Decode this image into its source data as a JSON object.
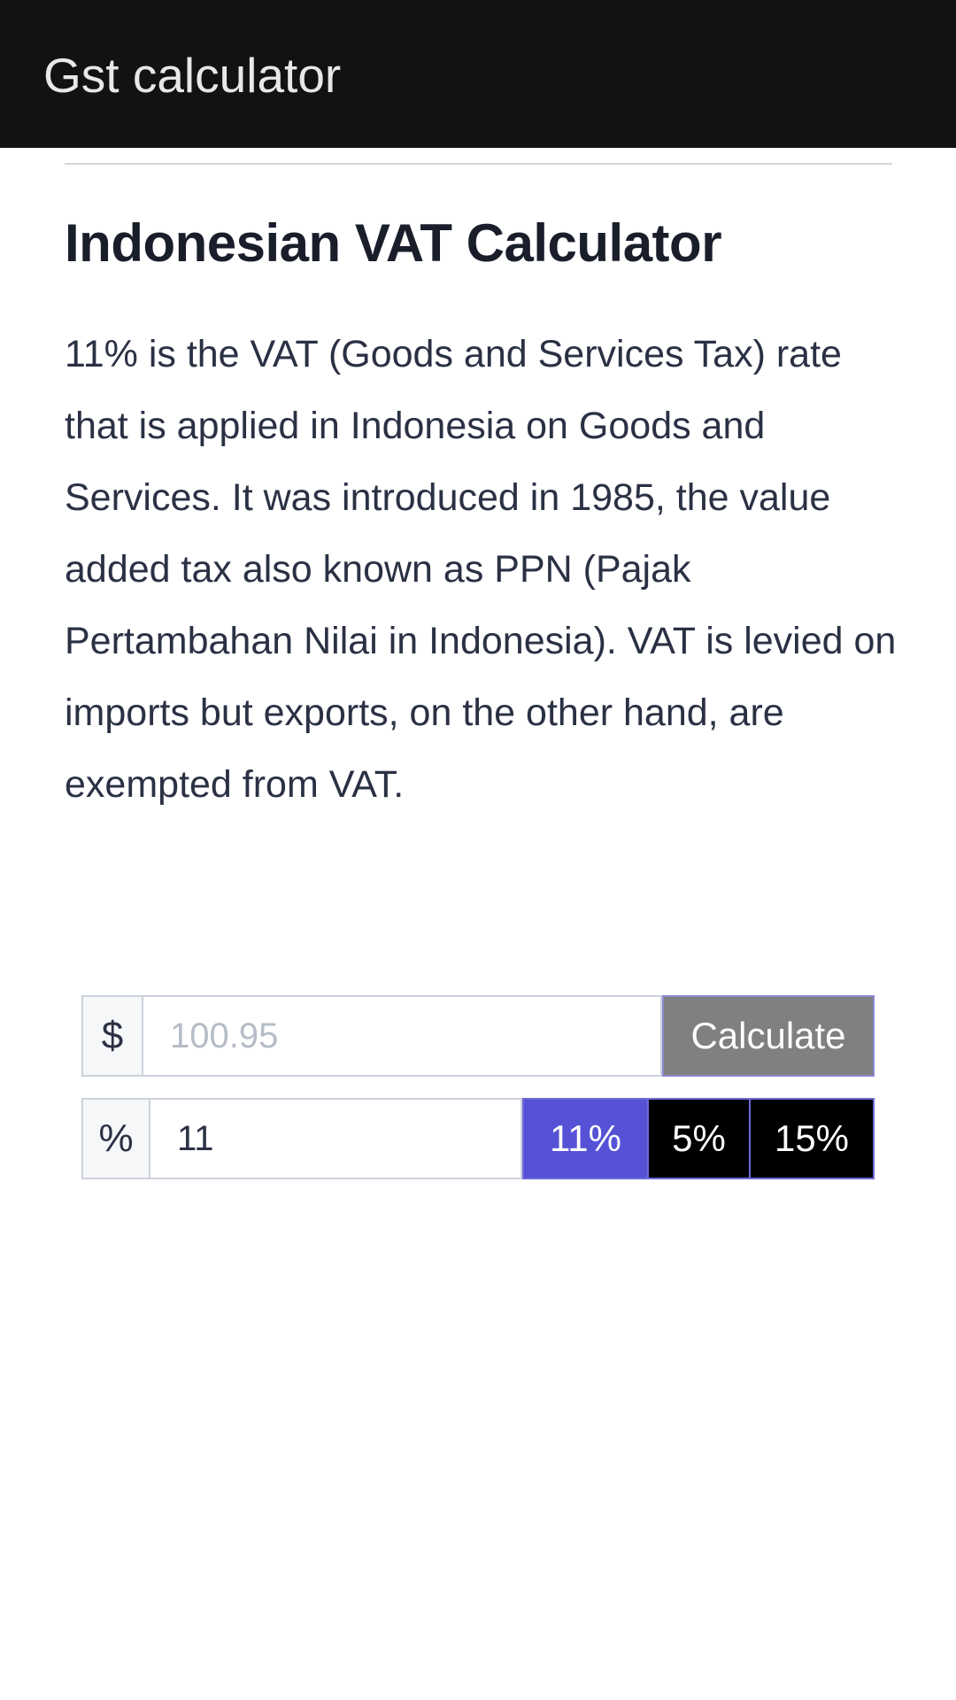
{
  "appbar": {
    "title": "Gst calculator"
  },
  "heading": "Indonesian VAT Calculator",
  "description": "11% is the VAT (Goods and Services Tax) rate that is applied in Indonesia on Goods and Services. It was introduced in 1985, the value added tax also known as PPN (Pajak Pertambahan Nilai in Indonesia). VAT is levied on imports but exports, on the other hand, are exempted from VAT.",
  "amount": {
    "prefix": "$",
    "placeholder": "100.95",
    "value": "",
    "calculate_label": "Calculate"
  },
  "rate": {
    "prefix": "%",
    "value": "11",
    "presets": [
      "11%",
      "5%",
      "15%"
    ],
    "selected": "11%"
  },
  "colors": {
    "appbar": "#121212",
    "selected_preset": "#5652d6",
    "calculate": "#808080"
  }
}
